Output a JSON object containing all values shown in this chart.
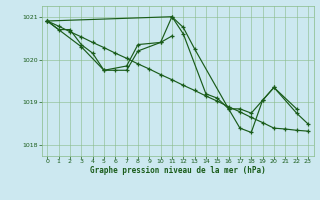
{
  "xlabel": "Graphe pression niveau de la mer (hPa)",
  "bg_color": "#cce8f0",
  "plot_bg_color": "#cce8f0",
  "grid_color": "#88bb88",
  "line_color": "#1a5c1a",
  "marker": "+",
  "ylim": [
    1017.75,
    1021.25
  ],
  "yticks": [
    1018,
    1019,
    1020,
    1021
  ],
  "xlim": [
    -0.5,
    23.5
  ],
  "xticks": [
    0,
    1,
    2,
    3,
    4,
    5,
    6,
    7,
    8,
    9,
    10,
    11,
    12,
    13,
    14,
    15,
    16,
    17,
    18,
    19,
    20,
    21,
    22,
    23
  ],
  "series1": [
    [
      0,
      1020.9
    ],
    [
      1,
      1020.7
    ],
    [
      2,
      1020.7
    ],
    [
      3,
      1020.35
    ],
    [
      4,
      1020.15
    ],
    [
      5,
      1019.75
    ],
    [
      6,
      1019.75
    ],
    [
      7,
      1019.75
    ],
    [
      8,
      1020.2
    ],
    [
      10,
      1020.4
    ],
    [
      11,
      1020.55
    ]
  ],
  "series2": [
    [
      0,
      1020.9
    ],
    [
      3,
      1020.3
    ],
    [
      5,
      1019.75
    ],
    [
      7,
      1019.85
    ],
    [
      8,
      1020.35
    ],
    [
      10,
      1020.4
    ],
    [
      11,
      1021.0
    ],
    [
      12,
      1020.75
    ],
    [
      13,
      1020.25
    ],
    [
      16,
      1018.85
    ],
    [
      17,
      1018.85
    ],
    [
      18,
      1018.75
    ],
    [
      19,
      1019.05
    ],
    [
      20,
      1019.35
    ],
    [
      22,
      1018.85
    ]
  ],
  "series3": [
    [
      0,
      1020.9
    ],
    [
      1,
      1020.78
    ],
    [
      2,
      1020.65
    ],
    [
      3,
      1020.53
    ],
    [
      4,
      1020.4
    ],
    [
      5,
      1020.28
    ],
    [
      6,
      1020.15
    ],
    [
      7,
      1020.03
    ],
    [
      8,
      1019.9
    ],
    [
      9,
      1019.78
    ],
    [
      10,
      1019.65
    ],
    [
      11,
      1019.53
    ],
    [
      12,
      1019.4
    ],
    [
      13,
      1019.28
    ],
    [
      14,
      1019.15
    ],
    [
      15,
      1019.03
    ],
    [
      16,
      1018.9
    ],
    [
      17,
      1018.78
    ],
    [
      18,
      1018.65
    ],
    [
      19,
      1018.53
    ],
    [
      20,
      1018.4
    ],
    [
      21,
      1018.38
    ],
    [
      22,
      1018.35
    ],
    [
      23,
      1018.33
    ]
  ],
  "series4": [
    [
      0,
      1020.9
    ],
    [
      11,
      1021.0
    ],
    [
      12,
      1020.6
    ],
    [
      14,
      1019.2
    ],
    [
      15,
      1019.1
    ],
    [
      16,
      1018.85
    ],
    [
      17,
      1018.4
    ],
    [
      18,
      1018.3
    ],
    [
      19,
      1019.05
    ],
    [
      20,
      1019.35
    ],
    [
      22,
      1018.75
    ],
    [
      23,
      1018.5
    ]
  ]
}
